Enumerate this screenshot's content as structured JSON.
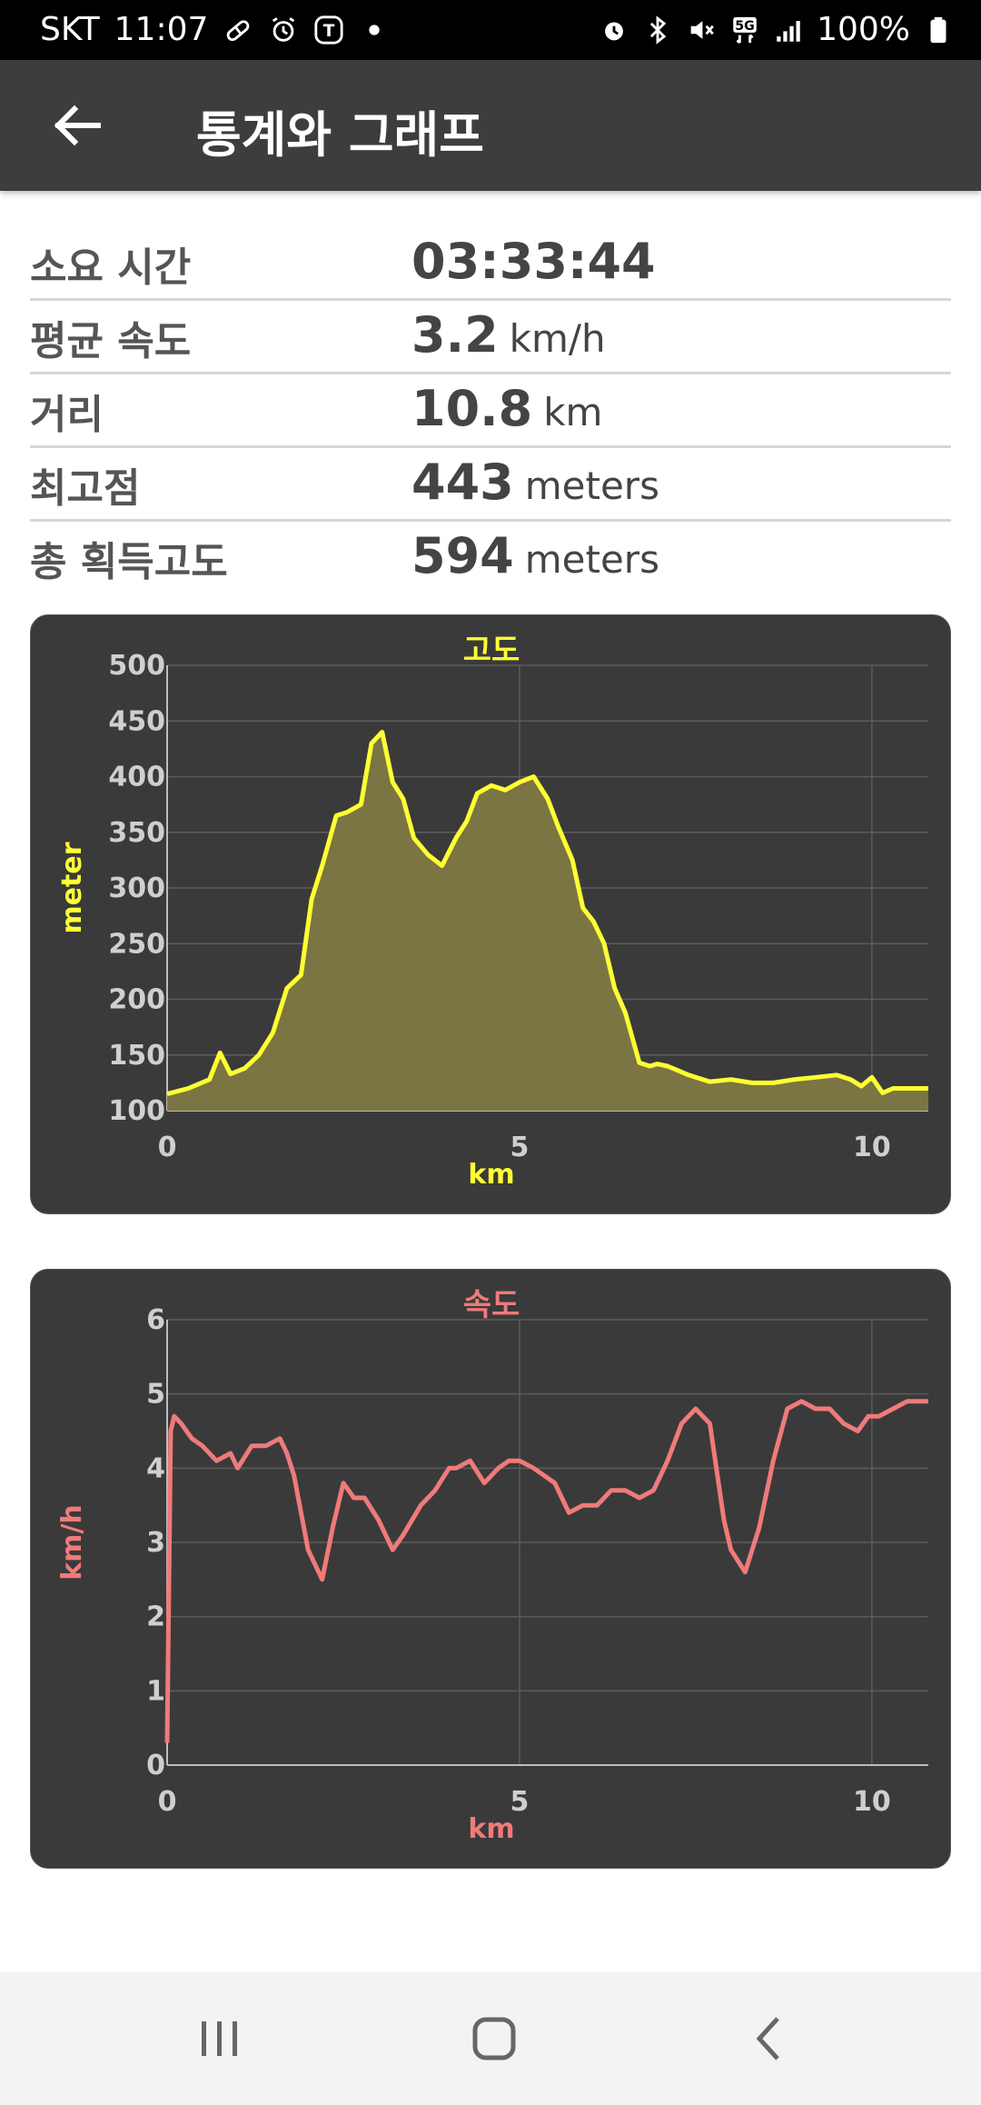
{
  "status_bar": {
    "carrier": "SKT",
    "time": "11:07",
    "battery": "100%",
    "network": "5G"
  },
  "header": {
    "title": "통계와 그래프",
    "back_icon": "arrow-left-icon"
  },
  "stats": [
    {
      "label": "소요 시간",
      "value": "03:33:44",
      "unit": ""
    },
    {
      "label": "평균 속도",
      "value": "3.2",
      "unit": "km/h"
    },
    {
      "label": "거리",
      "value": "10.8",
      "unit": "km"
    },
    {
      "label": "최고점",
      "value": "443",
      "unit": "meters"
    },
    {
      "label": "총 획득고도",
      "value": "594",
      "unit": "meters"
    }
  ],
  "colors": {
    "altitude": "#ffff33",
    "speed": "#f07a7a",
    "card_bg": "#3a3a3a",
    "header_bg": "#3d3d3d"
  },
  "chart_data": [
    {
      "type": "area",
      "title": "고도",
      "xlabel": "km",
      "ylabel": "meter",
      "xlim": [
        0,
        10.8
      ],
      "ylim": [
        100,
        500
      ],
      "xticks": [
        "0",
        "5",
        "10"
      ],
      "yticks": [
        "100",
        "150",
        "200",
        "250",
        "300",
        "350",
        "400",
        "450",
        "500"
      ],
      "grid": true,
      "x": [
        0,
        0.3,
        0.6,
        0.75,
        0.9,
        1.1,
        1.3,
        1.5,
        1.7,
        1.9,
        2.05,
        2.2,
        2.4,
        2.55,
        2.75,
        2.9,
        3.05,
        3.2,
        3.35,
        3.5,
        3.7,
        3.9,
        4.1,
        4.25,
        4.4,
        4.6,
        4.8,
        5.0,
        5.2,
        5.4,
        5.55,
        5.75,
        5.9,
        6.05,
        6.2,
        6.35,
        6.5,
        6.7,
        6.85,
        6.95,
        7.1,
        7.4,
        7.7,
        8.0,
        8.3,
        8.6,
        8.9,
        9.2,
        9.5,
        9.7,
        9.85,
        10.0,
        10.15,
        10.3,
        10.5,
        10.8
      ],
      "y": [
        115,
        120,
        128,
        152,
        133,
        138,
        150,
        170,
        210,
        222,
        290,
        320,
        365,
        368,
        375,
        430,
        440,
        395,
        380,
        345,
        330,
        320,
        345,
        360,
        385,
        392,
        388,
        395,
        400,
        380,
        355,
        325,
        282,
        270,
        250,
        210,
        188,
        143,
        140,
        142,
        140,
        132,
        126,
        128,
        125,
        125,
        128,
        130,
        132,
        128,
        122,
        130,
        116,
        120,
        120,
        120
      ]
    },
    {
      "type": "line",
      "title": "속도",
      "xlabel": "km",
      "ylabel": "km/h",
      "xlim": [
        0,
        10.8
      ],
      "ylim": [
        0,
        6
      ],
      "xticks": [
        "0",
        "5",
        "10"
      ],
      "yticks": [
        "0",
        "1",
        "2",
        "3",
        "4",
        "5",
        "6"
      ],
      "grid": true,
      "x": [
        0,
        0.05,
        0.1,
        0.2,
        0.35,
        0.5,
        0.7,
        0.9,
        1.0,
        1.2,
        1.4,
        1.6,
        1.7,
        1.8,
        2.0,
        2.2,
        2.35,
        2.5,
        2.65,
        2.8,
        3.0,
        3.2,
        3.35,
        3.6,
        3.8,
        4.0,
        4.1,
        4.3,
        4.5,
        4.7,
        4.85,
        5.0,
        5.2,
        5.35,
        5.5,
        5.7,
        5.9,
        6.1,
        6.3,
        6.5,
        6.7,
        6.9,
        7.1,
        7.3,
        7.5,
        7.7,
        7.9,
        8.0,
        8.2,
        8.4,
        8.6,
        8.8,
        9.0,
        9.2,
        9.4,
        9.6,
        9.8,
        9.95,
        10.1,
        10.3,
        10.5,
        10.8
      ],
      "y": [
        0.3,
        4.5,
        4.7,
        4.6,
        4.4,
        4.3,
        4.1,
        4.2,
        4.0,
        4.3,
        4.3,
        4.4,
        4.2,
        3.9,
        2.9,
        2.5,
        3.2,
        3.8,
        3.6,
        3.6,
        3.3,
        2.9,
        3.1,
        3.5,
        3.7,
        4.0,
        4.0,
        4.1,
        3.8,
        4.0,
        4.1,
        4.1,
        4.0,
        3.9,
        3.8,
        3.4,
        3.5,
        3.5,
        3.7,
        3.7,
        3.6,
        3.7,
        4.1,
        4.6,
        4.8,
        4.6,
        3.3,
        2.9,
        2.6,
        3.2,
        4.1,
        4.8,
        4.9,
        4.8,
        4.8,
        4.6,
        4.5,
        4.7,
        4.7,
        4.8,
        4.9,
        4.9
      ]
    }
  ],
  "nav": {
    "recents_icon": "recents-icon",
    "home_icon": "home-icon",
    "back_icon": "back-chevron-icon"
  }
}
